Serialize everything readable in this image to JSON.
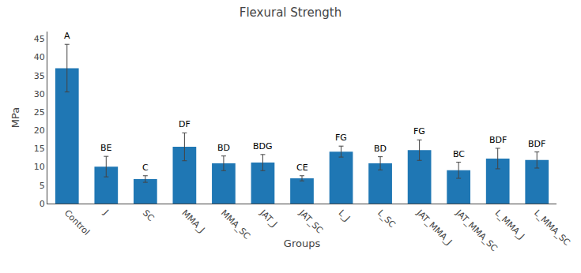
{
  "chart_data": {
    "type": "bar",
    "title": "Flexural Strength",
    "xlabel": "Groups",
    "ylabel": "MPa",
    "categories": [
      "Control",
      "J",
      "SC",
      "MMA_J",
      "MMA_SC",
      "JAT_J",
      "JAT_SC",
      "L_J",
      "L_SC",
      "JAT_MMA_J",
      "JAT_MMA_SC",
      "L_MMA_J",
      "L_MMA_SC"
    ],
    "values": [
      37.0,
      10.1,
      6.7,
      15.5,
      11.0,
      11.2,
      6.9,
      14.2,
      11.0,
      14.6,
      9.1,
      12.3,
      11.9
    ],
    "errors": [
      6.5,
      2.8,
      0.9,
      3.8,
      2.0,
      2.2,
      0.7,
      1.5,
      1.8,
      2.8,
      2.2,
      2.8,
      2.2
    ],
    "annotations": [
      "A",
      "BE",
      "C",
      "DF",
      "BD",
      "BDG",
      "CE",
      "FG",
      "BD",
      "FG",
      "BC",
      "BDF",
      "BDF"
    ],
    "ylim": [
      0,
      47
    ],
    "yticks": [
      0,
      5,
      10,
      15,
      20,
      25,
      30,
      35,
      40,
      45
    ],
    "grid": false
  }
}
